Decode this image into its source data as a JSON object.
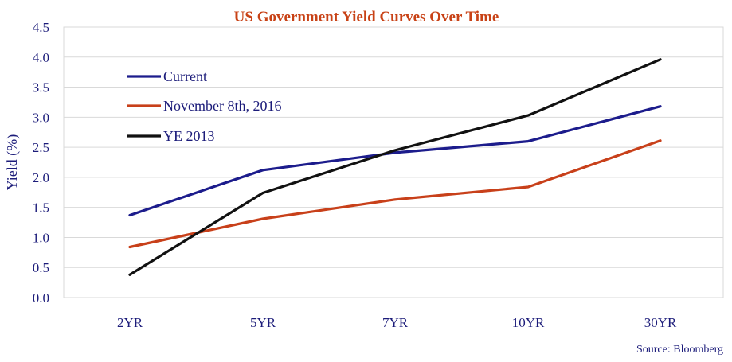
{
  "chart_data": {
    "type": "line",
    "title": "US Government Yield Curves Over Time",
    "ylabel": "Yield (%)",
    "xlabel": "",
    "categories": [
      "2YR",
      "5YR",
      "7YR",
      "10YR",
      "30YR"
    ],
    "ylim": [
      0,
      4.5
    ],
    "yticks": [
      "0.0",
      "0.5",
      "1.0",
      "1.5",
      "2.0",
      "2.5",
      "3.0",
      "3.5",
      "4.0",
      "4.5"
    ],
    "grid": "horizontal",
    "legend_position": "top-left",
    "series": [
      {
        "name": "Current",
        "color": "#1c1c8c",
        "values": [
          1.37,
          2.12,
          2.41,
          2.6,
          3.18
        ]
      },
      {
        "name": "November 8th, 2016",
        "color": "#c8401a",
        "values": [
          0.84,
          1.31,
          1.63,
          1.84,
          2.61
        ]
      },
      {
        "name": "YE 2013",
        "color": "#111111",
        "values": [
          0.38,
          1.74,
          2.45,
          3.03,
          3.96
        ]
      }
    ],
    "source": "Source: Bloomberg"
  }
}
